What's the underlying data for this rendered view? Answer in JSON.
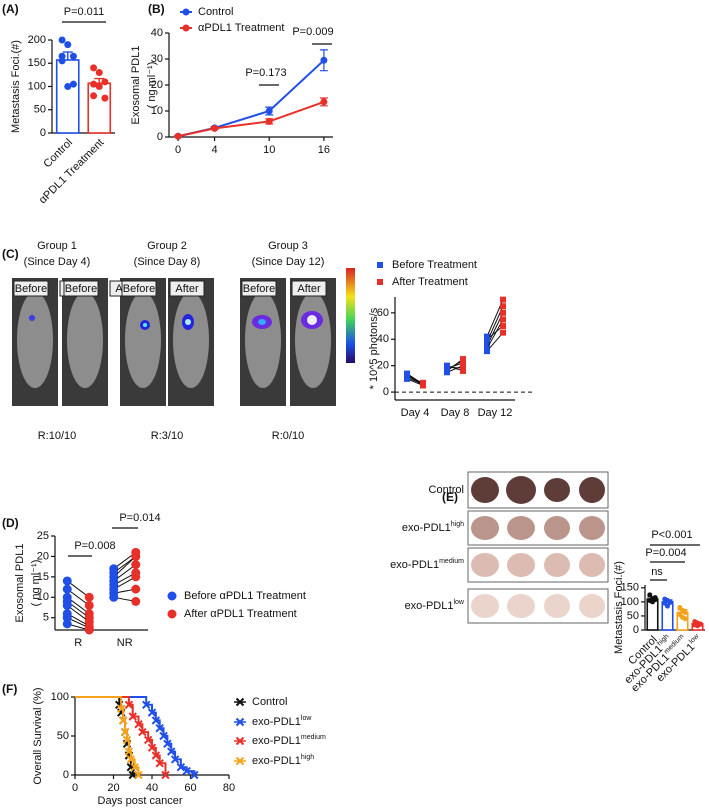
{
  "chart_data": [
    {
      "type": "bar",
      "label": "(A)",
      "ylabel": [
        "Metastasis Foci.(#)"
      ],
      "categories": [
        "Control",
        "αPDL1 Treatment"
      ],
      "values": [
        157,
        107
      ],
      "errors": [
        17,
        10
      ],
      "colors": [
        "#1f4fe6",
        "#e8302a"
      ],
      "points": [
        [
          200,
          190,
          165,
          155,
          100,
          105,
          165
        ],
        [
          140,
          130,
          110,
          105,
          100,
          75,
          80
        ]
      ],
      "ylim": [
        0,
        200
      ],
      "yticks": [
        0,
        50,
        100,
        150,
        200
      ],
      "annotations": [
        "P=0.011"
      ]
    },
    {
      "type": "line",
      "label": "(B)",
      "ylabel": [
        "Exosomal PDL1",
        "( ng ml⁻¹)"
      ],
      "x": [
        0,
        4,
        10,
        16
      ],
      "xlim": [
        -1,
        17
      ],
      "xticks": [
        0,
        4,
        10,
        16
      ],
      "ylim": [
        0,
        40
      ],
      "yticks": [
        0,
        10,
        20,
        30,
        40
      ],
      "series": [
        {
          "name": "Control",
          "color": "#1f4fe6",
          "values": [
            0.3,
            3.5,
            10,
            29.5
          ],
          "errors": [
            0.2,
            0.5,
            1.5,
            4
          ]
        },
        {
          "name": "αPDL1 Treatment",
          "color": "#e8302a",
          "values": [
            0.3,
            3.3,
            6,
            13.5
          ],
          "errors": [
            0.2,
            0.4,
            1,
            1.5
          ]
        }
      ],
      "annotations": [
        "P=0.173",
        "P=0.009"
      ]
    },
    {
      "type": "paired",
      "label": "(C)",
      "marker": "square",
      "groups": [
        {
          "title": "Group 1",
          "subtitle": "(Since Day 4)",
          "response": "R:10/10"
        },
        {
          "title": "Group 2",
          "subtitle": "(Since Day 8)",
          "response": "R:3/10"
        },
        {
          "title": "Group 3",
          "subtitle": "(Since Day 12)",
          "response": "R:0/10"
        }
      ],
      "image_labels": [
        "Before",
        "After"
      ],
      "ylabel": [
        "* 10^5 photons/s"
      ],
      "categories": [
        "Day 4",
        "Day 8",
        "Day 12"
      ],
      "ylim": [
        -6,
        72
      ],
      "yticks": [
        0,
        20,
        40,
        60
      ],
      "reference_line": 0,
      "series": [
        {
          "name": "Before Treatment",
          "color": "#1f4fe6",
          "values": [
            [
              14,
              13,
              12,
              11,
              10,
              13
            ],
            [
              18,
              17,
              16,
              15,
              19,
              20
            ],
            [
              42,
              38,
              35,
              33,
              40,
              31
            ]
          ]
        },
        {
          "name": "After Treatment",
          "color": "#e8302a",
          "values": [
            [
              6,
              5,
              7,
              6,
              5,
              6
            ],
            [
              22,
              24,
              25,
              20,
              18,
              16
            ],
            [
              70,
              65,
              60,
              55,
              50,
              45
            ]
          ]
        }
      ]
    },
    {
      "type": "paired",
      "label": "(D)",
      "marker": "circle",
      "ylabel": [
        "Exosomal PDL1",
        "( ng ml⁻¹)"
      ],
      "categories": [
        "R",
        "NR"
      ],
      "ylim": [
        2,
        25
      ],
      "yticks": [
        5,
        10,
        15,
        20,
        25
      ],
      "series": [
        {
          "name": "Before αPDL1 Treatment",
          "color": "#1f4fe6",
          "values": [
            [
              14,
              12,
              10,
              9,
              8,
              6,
              5,
              3.5
            ],
            [
              17,
              16,
              15,
              14,
              13,
              12,
              11,
              10
            ]
          ]
        },
        {
          "name": "After αPDL1 Treatment",
          "color": "#e8302a",
          "values": [
            [
              10,
              8,
              6,
              5,
              4,
              3,
              2.5,
              2
            ],
            [
              21,
              20,
              20,
              18,
              16,
              15,
              12,
              9
            ]
          ]
        }
      ],
      "annotations": [
        "P=0.008",
        "P=0.014"
      ]
    },
    {
      "type": "bar",
      "label": "(E)",
      "ylabel": [
        "Metastasis Foci.(#)"
      ],
      "categories": [
        {
          "text": "Control"
        },
        {
          "text": "exo-PDL1",
          "sup": "high"
        },
        {
          "text": "exo-PDL1",
          "sup": "medium"
        },
        {
          "text": "exo-PDL1",
          "sup": "low"
        }
      ],
      "values": [
        110,
        100,
        62,
        22
      ],
      "errors": [
        8,
        7,
        10,
        4
      ],
      "colors": [
        "#111111",
        "#1f4fe6",
        "#f5a31a",
        "#e8302a"
      ],
      "points": [
        [
          125,
          110,
          108,
          105,
          100,
          115
        ],
        [
          110,
          105,
          98,
          95,
          85,
          100
        ],
        [
          80,
          70,
          62,
          55,
          45,
          40
        ],
        [
          30,
          25,
          22,
          18,
          15,
          20
        ]
      ],
      "ylim": [
        0,
        160
      ],
      "yticks": [
        0,
        50,
        100,
        150
      ],
      "annotations": [
        "P<0.001",
        "P=0.004",
        "ns"
      ]
    },
    {
      "type": "survival",
      "label": "(F)",
      "ylabel": [
        "Overall Survival (%)"
      ],
      "xlabel": "Days post cancer",
      "xlim": [
        0,
        80
      ],
      "xticks": [
        0,
        20,
        40,
        60,
        80
      ],
      "ylim": [
        0,
        100
      ],
      "yticks": [
        0,
        50,
        100
      ],
      "series": [
        {
          "name": {
            "text": "Control"
          },
          "color": "#111111",
          "x": [
            0,
            23,
            24,
            25,
            26,
            27,
            28,
            29,
            30
          ],
          "values": [
            100,
            90,
            80,
            70,
            55,
            40,
            25,
            10,
            0
          ]
        },
        {
          "name": {
            "text": "exo-PDL1",
            "sup": "low"
          },
          "color": "#1f4fe6",
          "x": [
            0,
            37,
            40,
            42,
            44,
            46,
            48,
            50,
            52,
            55,
            58,
            62
          ],
          "values": [
            100,
            90,
            80,
            70,
            60,
            50,
            40,
            30,
            20,
            10,
            5,
            0
          ]
        },
        {
          "name": {
            "text": "exo-PDL1",
            "sup": "medium"
          },
          "color": "#e8302a",
          "x": [
            0,
            28,
            30,
            33,
            35,
            38,
            40,
            42,
            44,
            47
          ],
          "values": [
            100,
            90,
            75,
            65,
            55,
            45,
            35,
            25,
            15,
            0
          ]
        },
        {
          "name": {
            "text": "exo-PDL1",
            "sup": "high"
          },
          "color": "#f5a31a",
          "x": [
            0,
            24,
            25,
            26,
            27,
            28,
            29,
            31,
            33
          ],
          "values": [
            100,
            85,
            70,
            55,
            45,
            30,
            20,
            10,
            0
          ]
        }
      ]
    }
  ]
}
